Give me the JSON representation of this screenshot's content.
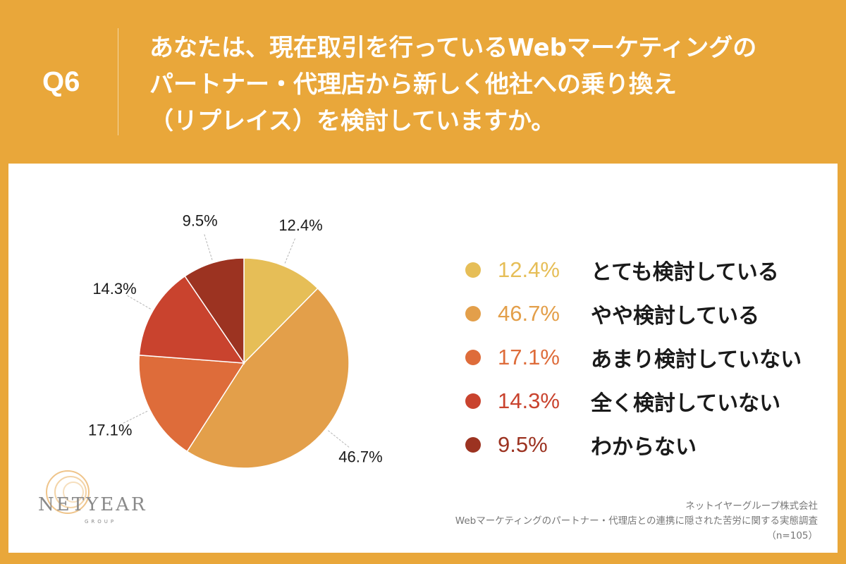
{
  "question": {
    "number": "Q6",
    "lines": [
      "あなたは、現在取引を行っているWebマーケティングの",
      "パートナー・代理店から新しく他社への乗り換え",
      "（リプレイス）を検討していますか。"
    ]
  },
  "colors": {
    "background": "#E9A73A",
    "panel": "#FFFFFF",
    "slices": [
      "#E6BE57",
      "#E39F4A",
      "#DE6C3A",
      "#C9432E",
      "#9C3321"
    ]
  },
  "chart_data": {
    "type": "pie",
    "start_angle_deg": 0,
    "direction": "clockwise",
    "slices": [
      {
        "label": "とても検討している",
        "value": 12.4,
        "display": "12.4%"
      },
      {
        "label": "やや検討している",
        "value": 46.7,
        "display": "46.7%"
      },
      {
        "label": "あまり検討していない",
        "value": 17.1,
        "display": "17.1%"
      },
      {
        "label": "全く検討していない",
        "value": 14.3,
        "display": "14.3%"
      },
      {
        "label": "わからない",
        "value": 9.5,
        "display": "9.5%"
      }
    ],
    "legend_position": "right"
  },
  "logo": {
    "text": "NETYEAR",
    "subtext": "GROUP"
  },
  "source": {
    "company": "ネットイヤーグループ株式会社",
    "survey": "Webマーケティングのパートナー・代理店との連携に隠された苦労に関する実態調査",
    "sample": "（n=105）"
  }
}
